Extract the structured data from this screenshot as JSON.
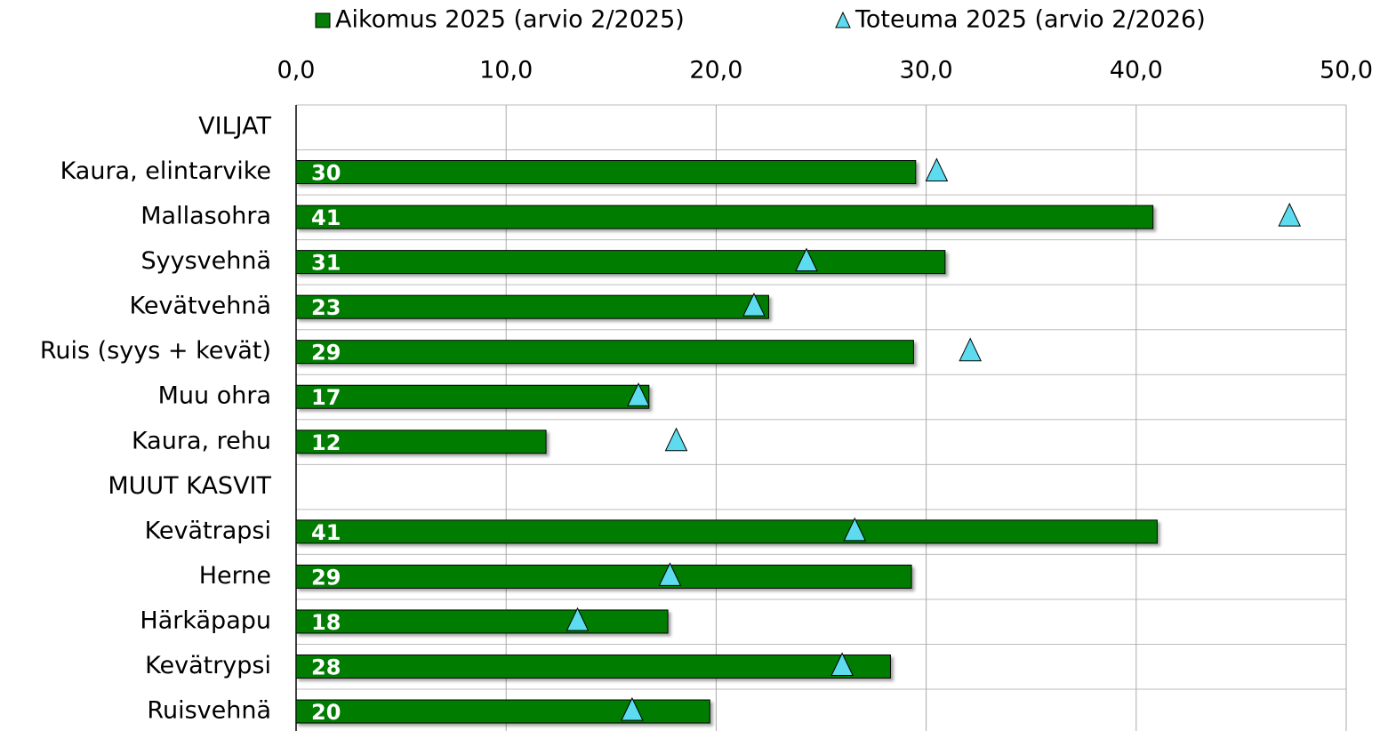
{
  "chart_data": {
    "type": "bar",
    "orientation": "horizontal",
    "categories": [
      "VILJAT",
      "Kaura, elintarvike",
      "Mallasohra",
      "Syysvehnä",
      "Kevätvehnä",
      "Ruis (syys + kevät)",
      "Muu ohra",
      "Kaura, rehu",
      "MUUT KASVIT",
      "Kevätrapsi",
      "Herne",
      "Härkäpapu",
      "Kevätrypsi",
      "Ruisvehnä"
    ],
    "series": [
      {
        "name": "Aikomus 2025 (arvio 2/2025)",
        "color": "#067d06",
        "marker": "square",
        "values": [
          null,
          29.5,
          40.8,
          30.9,
          22.5,
          29.4,
          16.8,
          11.9,
          null,
          41.0,
          29.3,
          17.7,
          28.3,
          19.7
        ],
        "value_labels": [
          null,
          "30",
          "41",
          "31",
          "23",
          "29",
          "17",
          "12",
          null,
          "41",
          "29",
          "18",
          "28",
          "20"
        ]
      },
      {
        "name": "Toteuma 2025 (arvio 2/2026)",
        "color": "#5ddcf0",
        "marker": "triangle",
        "values": [
          null,
          30.5,
          47.3,
          24.3,
          21.8,
          32.1,
          16.3,
          18.1,
          null,
          26.6,
          17.8,
          13.4,
          26.0,
          16.0
        ]
      }
    ],
    "xlim": [
      0,
      50
    ],
    "xticks": [
      {
        "value": 0,
        "label": "0,0"
      },
      {
        "value": 10,
        "label": "10,0"
      },
      {
        "value": 20,
        "label": "20,0"
      },
      {
        "value": 30,
        "label": "30,0"
      },
      {
        "value": 40,
        "label": "40,0"
      },
      {
        "value": 50,
        "label": "50,0"
      }
    ],
    "grid": true,
    "legend": "top"
  }
}
